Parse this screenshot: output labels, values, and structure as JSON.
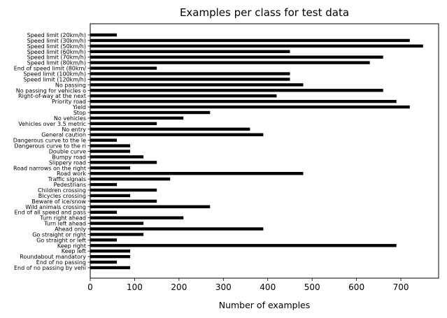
{
  "chart_data": {
    "type": "bar",
    "orientation": "horizontal",
    "title": "Examples per class for test data",
    "xlabel": "Number of examples",
    "ylabel": "",
    "xlim": [
      0,
      785
    ],
    "xticks": [
      0,
      100,
      200,
      300,
      400,
      500,
      600,
      700
    ],
    "grid": false,
    "bar_color": "#000000",
    "categories": [
      "Speed limit (20km/h)",
      "Speed limit (30km/h)",
      "Speed limit (50km/h)",
      "Speed limit (60km/h)",
      "Speed limit (70km/h)",
      "Speed limit (80km/h)",
      "End of speed limit (80km/",
      "Speed limit (100km/h)",
      "Speed limit (120km/h)",
      "No passing",
      "No passing for vehicles o",
      "Right-of-way at the next",
      "Priority road",
      "Yield",
      "Stop",
      "No vehicles",
      "Vehicles over 3.5 metric",
      "No entry",
      "General caution",
      "Dangerous curve to the le",
      "Dangerous curve to the ri",
      "Double curve",
      "Bumpy road",
      "Slippery road",
      "Road narrows on the right",
      "Road work",
      "Traffic signals",
      "Pedestrians",
      "Children crossing",
      "Bicycles crossing",
      "Beware of ice/snow",
      "Wild animals crossing",
      "End of all speed and pass",
      "Turn right ahead",
      "Turn left ahead",
      "Ahead only",
      "Go straight or right",
      "Go straight or left",
      "Keep right",
      "Keep left",
      "Roundabout mandatory",
      "End of no passing",
      "End of no passing by vehi"
    ],
    "values": [
      60,
      720,
      750,
      450,
      660,
      630,
      150,
      450,
      450,
      480,
      660,
      420,
      690,
      720,
      270,
      210,
      150,
      360,
      390,
      60,
      90,
      90,
      120,
      150,
      90,
      480,
      180,
      60,
      150,
      90,
      150,
      270,
      60,
      210,
      120,
      390,
      120,
      60,
      690,
      90,
      90,
      60,
      90
    ]
  }
}
